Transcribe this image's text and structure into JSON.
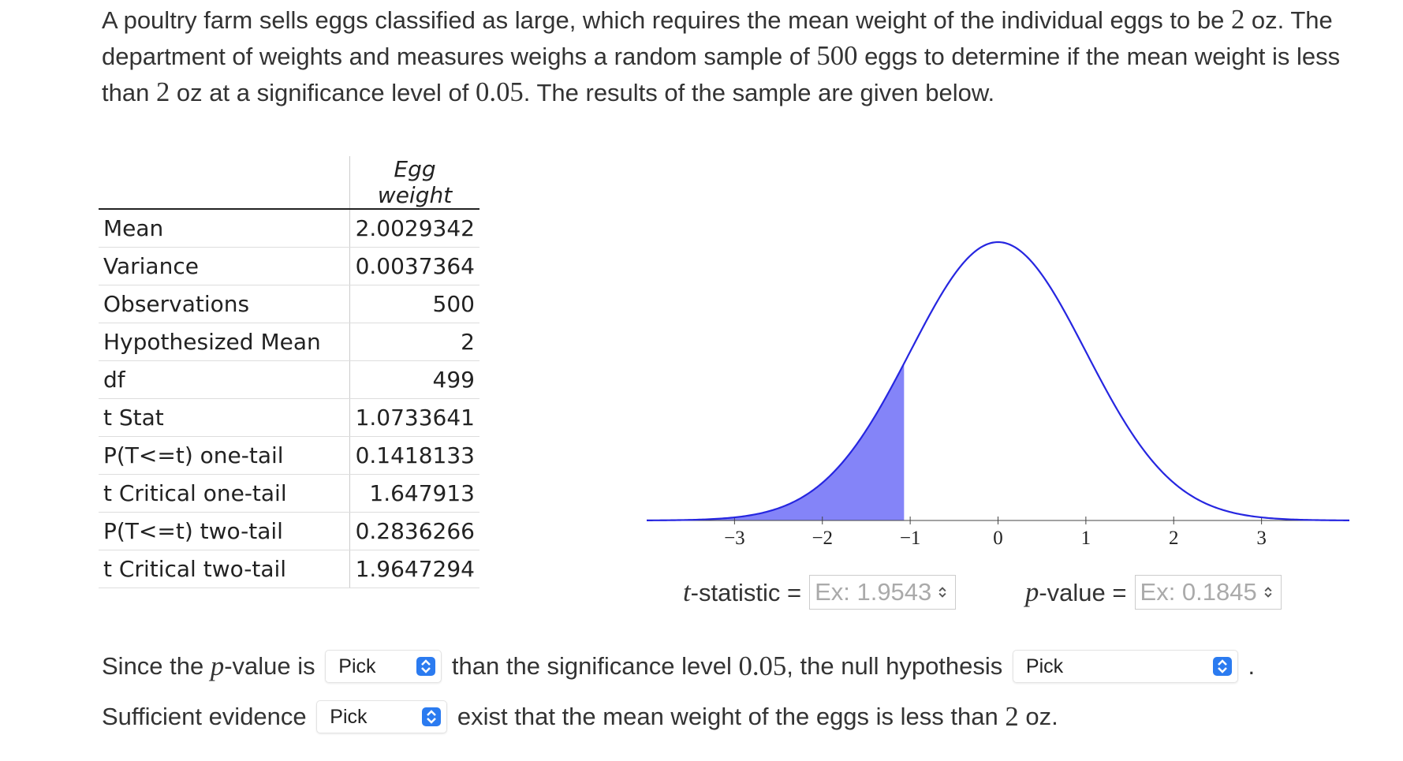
{
  "intro": [
    "A poultry farm sells eggs classified as large, which requires the mean weight of the individual eggs to be ",
    "2",
    " oz. The department of weights and measures weighs a random sample of ",
    "500",
    " eggs to determine if the mean weight is less than ",
    "2",
    " oz at a significance level of ",
    "0.05",
    ". The results of the sample are given below."
  ],
  "table": {
    "column_header": "Egg weight",
    "rows": [
      [
        "Mean",
        "2.0029342"
      ],
      [
        "Variance",
        "0.0037364"
      ],
      [
        "Observations",
        "500"
      ],
      [
        "Hypothesized Mean",
        "2"
      ],
      [
        "df",
        "499"
      ],
      [
        "t Stat",
        "1.0733641"
      ],
      [
        "P(T<=t) one-tail",
        "0.1418133"
      ],
      [
        "t Critical one-tail",
        "1.647913"
      ],
      [
        "P(T<=t) two-tail",
        "0.2836266"
      ],
      [
        "t Critical two-tail",
        "1.9647294"
      ]
    ]
  },
  "chart_data": {
    "type": "density",
    "xlim": [
      -4,
      4
    ],
    "xticks": [
      {
        "value": -3,
        "label": "−3"
      },
      {
        "value": -2,
        "label": "−2"
      },
      {
        "value": -1,
        "label": "−1"
      },
      0,
      1,
      2,
      3
    ],
    "curve_color": "#2626e0",
    "shade_color": "#8484f8",
    "shade_to": -1.07
  },
  "inputs": [
    {
      "label": [
        "t",
        "-statistic ="
      ],
      "placeholder": "Ex: 1.9543"
    },
    {
      "label": [
        "p",
        "-value ="
      ],
      "placeholder": "Ex: 0.1845"
    }
  ],
  "sentences": [
    [
      {
        "text": "Since the "
      },
      {
        "italic": "p"
      },
      {
        "text": "-value is "
      },
      {
        "select": "Pick"
      },
      {
        "text": " than the significance level "
      },
      {
        "math": "0.05"
      },
      {
        "text": ", the null hypothesis "
      },
      {
        "select": "Pick"
      },
      {
        "text": " ."
      }
    ],
    [
      {
        "text": "Sufficient evidence "
      },
      {
        "select": "Pick"
      },
      {
        "text": " exist that the mean weight of the eggs is less than "
      },
      {
        "math": "2"
      },
      {
        "text": " oz."
      }
    ]
  ]
}
